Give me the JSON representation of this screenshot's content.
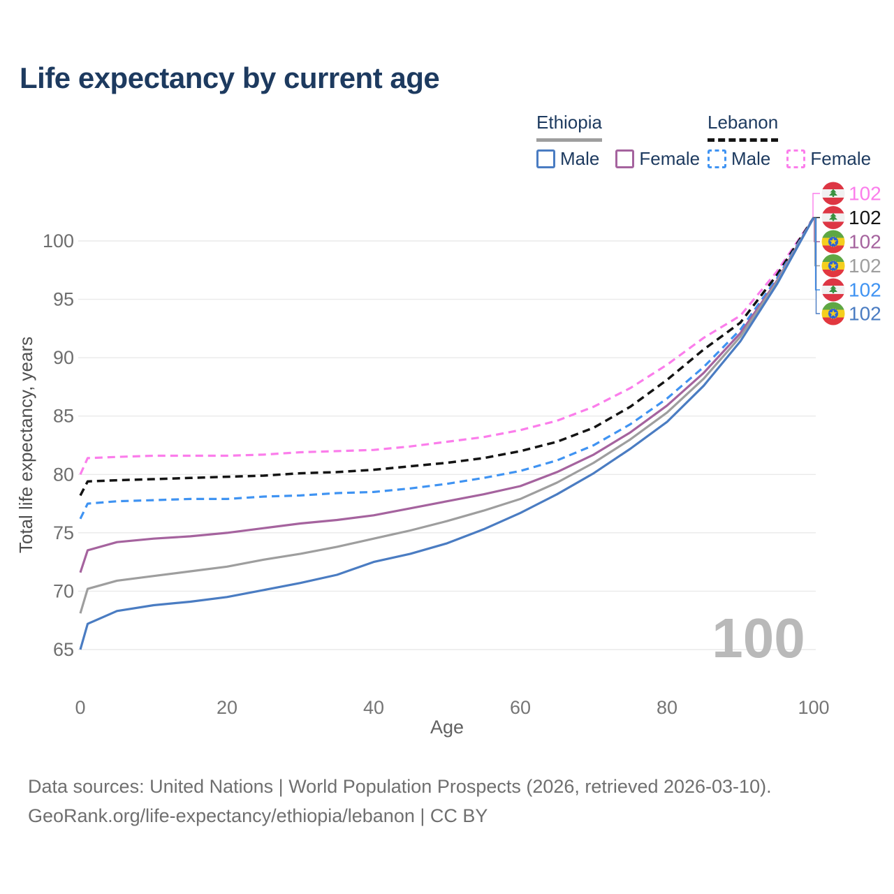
{
  "title": "Life expectancy by current age",
  "legend": {
    "groups": [
      {
        "label": "Ethiopia",
        "line_style": "solid",
        "underline_color": "#9e9e9e",
        "items": [
          {
            "label": "Male",
            "color": "#4a7cc2",
            "style": "solid"
          },
          {
            "label": "Female",
            "color": "#a5639e",
            "style": "solid"
          }
        ]
      },
      {
        "label": "Lebanon",
        "line_style": "dashed",
        "underline_color": "#141414",
        "items": [
          {
            "label": "Male",
            "color": "#3f93f2",
            "style": "dashed"
          },
          {
            "label": "Female",
            "color": "#fb7deb",
            "style": "dashed"
          }
        ]
      }
    ]
  },
  "chart_data": {
    "type": "line",
    "title": "Life expectancy by current age",
    "xlabel": "Age",
    "ylabel": "Total life expectancy, years",
    "xticks": [
      0,
      20,
      40,
      60,
      80,
      100
    ],
    "yticks": [
      65,
      70,
      75,
      80,
      85,
      90,
      95,
      100
    ],
    "xlim": [
      0,
      100
    ],
    "ylim": [
      63.5,
      103
    ],
    "grid": "horizontal",
    "legend_position": "top-right",
    "watermark": "100",
    "x": [
      0,
      1,
      5,
      10,
      15,
      20,
      25,
      30,
      35,
      40,
      45,
      50,
      55,
      60,
      65,
      70,
      75,
      80,
      85,
      90,
      95,
      100
    ],
    "series": [
      {
        "id": "lebanon-female",
        "name": "Lebanon Female",
        "country": "Lebanon",
        "sex": "Female",
        "color": "#fb7deb",
        "dashed": true,
        "values": [
          80.0,
          81.4,
          81.5,
          81.6,
          81.6,
          81.6,
          81.7,
          81.9,
          82.0,
          82.1,
          82.4,
          82.8,
          83.2,
          83.8,
          84.6,
          85.8,
          87.4,
          89.4,
          91.7,
          93.6,
          97.4,
          102
        ]
      },
      {
        "id": "lebanon-total",
        "name": "Lebanon",
        "country": "Lebanon",
        "sex": "All",
        "color": "#141414",
        "dashed": true,
        "values": [
          78.2,
          79.4,
          79.5,
          79.6,
          79.7,
          79.8,
          79.9,
          80.1,
          80.2,
          80.4,
          80.7,
          81.0,
          81.4,
          82.0,
          82.8,
          84.0,
          85.8,
          88.1,
          90.7,
          93.0,
          97.1,
          102
        ]
      },
      {
        "id": "lebanon-male",
        "name": "Lebanon Male",
        "country": "Lebanon",
        "sex": "Male",
        "color": "#3f93f2",
        "dashed": true,
        "values": [
          76.2,
          77.5,
          77.7,
          77.8,
          77.9,
          77.9,
          78.1,
          78.2,
          78.4,
          78.5,
          78.8,
          79.2,
          79.7,
          80.3,
          81.2,
          82.5,
          84.3,
          86.5,
          89.2,
          92.4,
          96.8,
          102
        ]
      },
      {
        "id": "ethiopia-female",
        "name": "Ethiopia Female",
        "country": "Ethiopia",
        "sex": "Female",
        "color": "#a5639e",
        "dashed": false,
        "values": [
          71.6,
          73.5,
          74.2,
          74.5,
          74.7,
          75.0,
          75.4,
          75.8,
          76.1,
          76.5,
          77.1,
          77.7,
          78.3,
          79.0,
          80.2,
          81.7,
          83.6,
          85.9,
          88.7,
          92.1,
          96.6,
          102
        ]
      },
      {
        "id": "ethiopia-total",
        "name": "Ethiopia",
        "country": "Ethiopia",
        "sex": "All",
        "color": "#9e9e9e",
        "dashed": false,
        "values": [
          68.1,
          70.2,
          70.9,
          71.3,
          71.7,
          72.1,
          72.7,
          73.2,
          73.8,
          74.5,
          75.2,
          76.0,
          76.9,
          77.9,
          79.3,
          81.0,
          83.0,
          85.3,
          88.2,
          91.8,
          96.5,
          102
        ]
      },
      {
        "id": "ethiopia-male",
        "name": "Ethiopia Male",
        "country": "Ethiopia",
        "sex": "Male",
        "color": "#4a7cc2",
        "dashed": false,
        "values": [
          65.0,
          67.2,
          68.3,
          68.8,
          69.1,
          69.5,
          70.1,
          70.7,
          71.4,
          72.5,
          73.2,
          74.1,
          75.3,
          76.7,
          78.3,
          80.1,
          82.2,
          84.5,
          87.6,
          91.4,
          96.3,
          102
        ]
      }
    ],
    "end_labels": [
      {
        "series": "lebanon-female",
        "flag": "lebanon",
        "value": "102",
        "color": "#fb7deb"
      },
      {
        "series": "lebanon-total",
        "flag": "lebanon",
        "value": "102",
        "color": "#141414"
      },
      {
        "series": "ethiopia-female",
        "flag": "ethiopia",
        "value": "102",
        "color": "#a5639e"
      },
      {
        "series": "ethiopia-total",
        "flag": "ethiopia",
        "value": "102",
        "color": "#9e9e9e"
      },
      {
        "series": "lebanon-male",
        "flag": "lebanon",
        "value": "102",
        "color": "#3f93f2"
      },
      {
        "series": "ethiopia-male",
        "flag": "ethiopia",
        "value": "102",
        "color": "#4a7cc2"
      }
    ]
  },
  "footer": {
    "line1": "Data sources: United Nations | World Population Prospects (2026, retrieved 2026-03-10).",
    "line2": "GeoRank.org/life-expectancy/ethiopia/lebanon | CC BY"
  }
}
